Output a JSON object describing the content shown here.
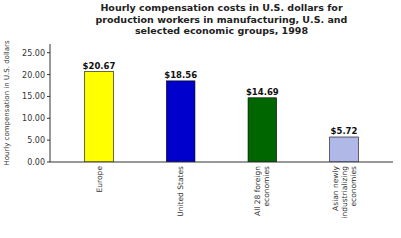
{
  "chart_data": {
    "type": "bar",
    "title": "Hourly compensation costs in U.S. dollars for\nproduction workers in manufacturing, U.S. and\nselected economic groups, 1998",
    "ylabel": "Hourly compensation in U.S. dollars",
    "categories": [
      "Europe",
      "United States",
      "All 28 foreign\neconomies",
      "Asian newly\nindustrializing\neconomies"
    ],
    "values": [
      20.67,
      18.56,
      14.69,
      5.72
    ],
    "value_labels": [
      "$20.67",
      "$18.56",
      "$14.69",
      "$5.72"
    ],
    "data_labels": true,
    "colors": [
      "#ffff00",
      "#0000cc",
      "#006600",
      "#b0b8e8"
    ],
    "ylim": [
      0,
      27
    ],
    "yticks": [
      {
        "value": 0,
        "label": "0.00"
      },
      {
        "value": 5,
        "label": "5.00"
      },
      {
        "value": 10,
        "label": "10.00"
      },
      {
        "value": 15,
        "label": "15.00"
      },
      {
        "value": 20,
        "label": "20.00"
      },
      {
        "value": 25,
        "label": "25.00"
      }
    ],
    "grid": false
  }
}
